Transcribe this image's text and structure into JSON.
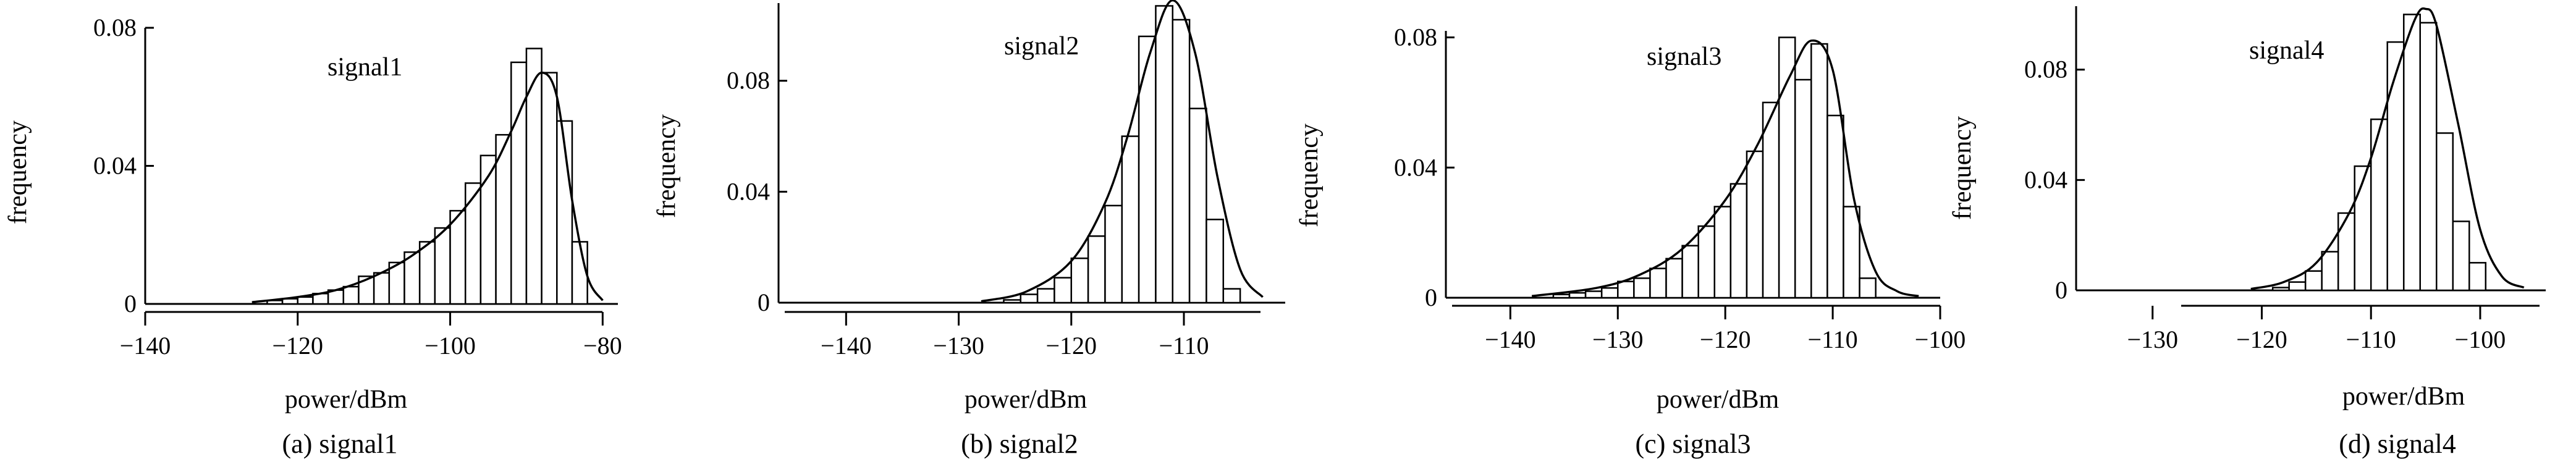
{
  "chart_data": [
    {
      "type": "bar",
      "title": "signal1",
      "caption": "(a) signal1",
      "xlabel": "power/dBm",
      "ylabel": "frequency",
      "xlim": [
        -140,
        -78
      ],
      "ylim": [
        0,
        0.08
      ],
      "xticks": [
        -140,
        -120,
        -100,
        -80
      ],
      "xtick_labels": [
        "−140",
        "−120",
        "−100",
        "−80"
      ],
      "yticks": [
        0,
        0.04,
        0.08
      ],
      "ytick_labels": [
        "0",
        "0.04",
        "0.08"
      ],
      "bin_width": 2,
      "series": [
        {
          "bins": [
            -124,
            -122,
            -120,
            -118,
            -116,
            -114,
            -112,
            -110,
            -108,
            -106,
            -104,
            -102,
            -100,
            -98,
            -96,
            -94,
            -92,
            -90,
            -88,
            -86,
            -84
          ],
          "values": [
            0.001,
            0.0015,
            0.002,
            0.003,
            0.004,
            0.005,
            0.008,
            0.009,
            0.012,
            0.015,
            0.018,
            0.022,
            0.027,
            0.035,
            0.043,
            0.049,
            0.07,
            0.074,
            0.067,
            0.053,
            0.018
          ]
        },
        {
          "curve": "fit",
          "x": [
            -126,
            -120,
            -115,
            -110,
            -105,
            -100,
            -95,
            -92,
            -90,
            -88,
            -86,
            -84,
            -82,
            -80
          ],
          "values": [
            0.0005,
            0.002,
            0.004,
            0.008,
            0.014,
            0.023,
            0.037,
            0.05,
            0.06,
            0.067,
            0.06,
            0.03,
            0.008,
            0.001
          ]
        }
      ]
    },
    {
      "type": "bar",
      "title": "signal2",
      "caption": "(b) signal2",
      "xlabel": "power/dBm",
      "ylabel": "frequency",
      "xlim": [
        -146,
        -101
      ],
      "ylim": [
        0,
        0.108
      ],
      "xticks": [
        -140,
        -130,
        -120,
        -110
      ],
      "xtick_labels": [
        "−140",
        "−130",
        "−120",
        "−110"
      ],
      "yticks": [
        0,
        0.04,
        0.08
      ],
      "ytick_labels": [
        "0",
        "0.04",
        "0.08"
      ],
      "bin_width": 1.5,
      "series": [
        {
          "bins": [
            -126,
            -124.5,
            -123,
            -121.5,
            -120,
            -118.5,
            -117,
            -115.5,
            -114,
            -112.5,
            -111,
            -109.5,
            -108,
            -106.5
          ],
          "values": [
            0.001,
            0.003,
            0.005,
            0.009,
            0.016,
            0.024,
            0.035,
            0.06,
            0.096,
            0.107,
            0.102,
            0.07,
            0.03,
            0.005
          ]
        },
        {
          "curve": "fit",
          "x": [
            -128,
            -124,
            -120,
            -117,
            -115,
            -113,
            -111,
            -109,
            -107,
            -105,
            -103
          ],
          "values": [
            0.0005,
            0.004,
            0.015,
            0.036,
            0.06,
            0.09,
            0.109,
            0.09,
            0.045,
            0.012,
            0.002
          ]
        }
      ]
    },
    {
      "type": "bar",
      "title": "signal3",
      "caption": "(c) signal3",
      "xlabel": "power/dBm",
      "ylabel": "frequency",
      "xlim": [
        -146,
        -100
      ],
      "ylim": [
        0,
        0.082
      ],
      "xticks": [
        -140,
        -130,
        -120,
        -110,
        -100
      ],
      "xtick_labels": [
        "−140",
        "−130",
        "−120",
        "−110",
        "−100"
      ],
      "yticks": [
        0,
        0.04,
        0.08
      ],
      "ytick_labels": [
        "0",
        "0.04",
        "0.08"
      ],
      "bin_width": 1.5,
      "series": [
        {
          "bins": [
            -136,
            -134.5,
            -133,
            -131.5,
            -130,
            -128.5,
            -127,
            -125.5,
            -124,
            -122.5,
            -121,
            -119.5,
            -118,
            -116.5,
            -115,
            -113.5,
            -112,
            -110.5,
            -109,
            -107.5
          ],
          "values": [
            0.001,
            0.0015,
            0.002,
            0.003,
            0.005,
            0.006,
            0.009,
            0.012,
            0.016,
            0.022,
            0.028,
            0.035,
            0.045,
            0.06,
            0.08,
            0.067,
            0.078,
            0.056,
            0.028,
            0.006
          ]
        },
        {
          "curve": "fit",
          "x": [
            -138,
            -132,
            -128,
            -124,
            -120,
            -117,
            -114,
            -112,
            -110,
            -108,
            -106,
            -104,
            -102
          ],
          "values": [
            0.0005,
            0.003,
            0.007,
            0.015,
            0.03,
            0.047,
            0.068,
            0.079,
            0.07,
            0.03,
            0.008,
            0.002,
            0.0005
          ]
        }
      ]
    },
    {
      "type": "bar",
      "title": "signal4",
      "caption": "(d) signal4",
      "xlabel": "power/dBm",
      "ylabel": "frequency",
      "xlim": [
        -137,
        -94
      ],
      "ylim": [
        0,
        0.103
      ],
      "xticks": [
        -130,
        -120,
        -110,
        -100
      ],
      "xtick_labels": [
        "−130",
        "−120",
        "−110",
        "−100"
      ],
      "yticks": [
        0,
        0.04,
        0.08
      ],
      "ytick_labels": [
        "0",
        "0.04",
        "0.08"
      ],
      "bin_width": 1.5,
      "series": [
        {
          "bins": [
            -119,
            -117.5,
            -116,
            -114.5,
            -113,
            -111.5,
            -110,
            -108.5,
            -107,
            -105.5,
            -104,
            -102.5,
            -101
          ],
          "values": [
            0.001,
            0.003,
            0.007,
            0.014,
            0.028,
            0.045,
            0.062,
            0.09,
            0.1,
            0.097,
            0.057,
            0.025,
            0.01
          ]
        },
        {
          "curve": "fit",
          "x": [
            -121,
            -118,
            -115,
            -112,
            -110,
            -108,
            -106,
            -105,
            -104,
            -102,
            -100,
            -98,
            -96
          ],
          "values": [
            0.0005,
            0.003,
            0.01,
            0.028,
            0.048,
            0.075,
            0.098,
            0.102,
            0.096,
            0.06,
            0.022,
            0.005,
            0.001
          ]
        }
      ]
    }
  ]
}
